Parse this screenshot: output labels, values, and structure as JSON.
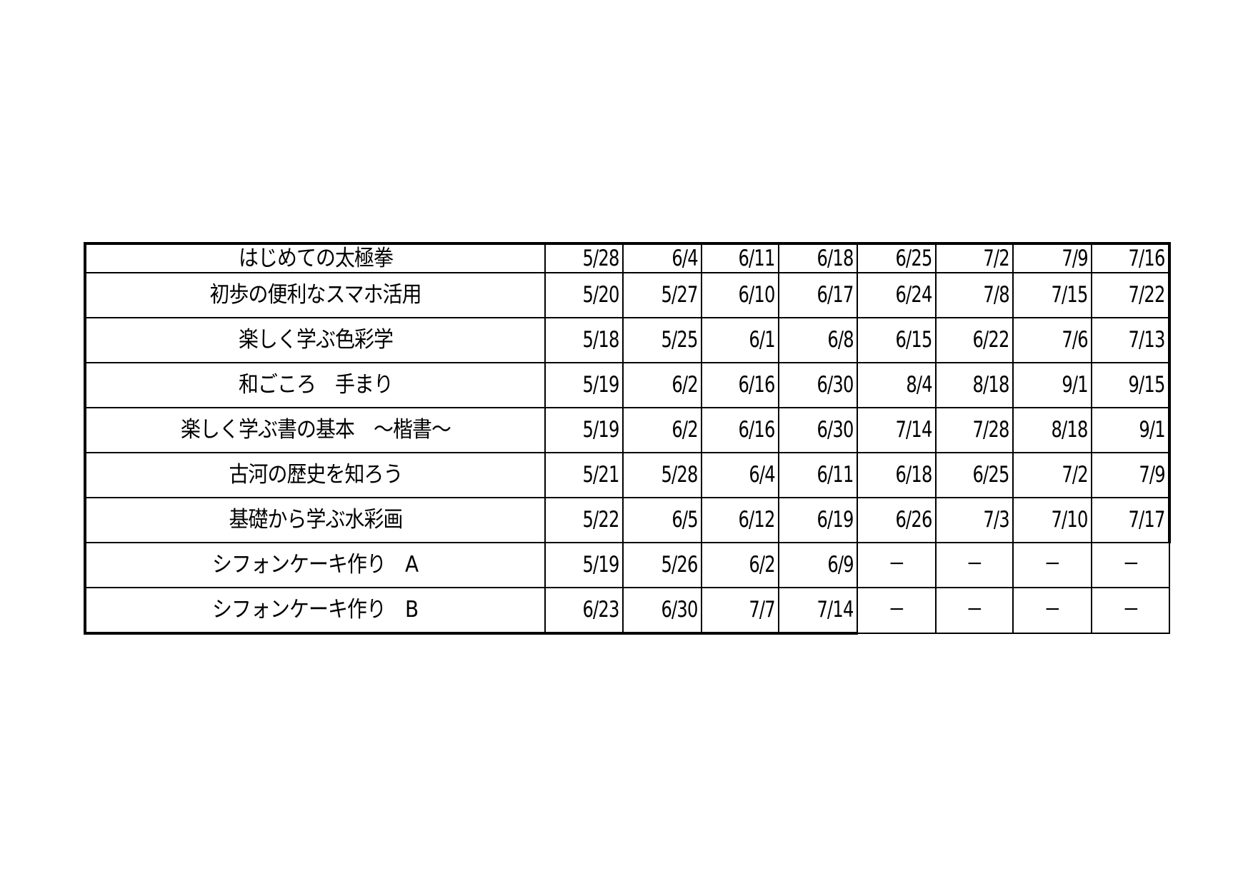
{
  "courses": [
    {
      "name": "はじめての太極拳",
      "dates": [
        "5/28",
        "6/4",
        "6/11",
        "6/18",
        "6/25",
        "7/2",
        "7/9",
        "7/16"
      ]
    },
    {
      "name": "初歩の便利なスマホ活用",
      "dates": [
        "5/20",
        "5/27",
        "6/10",
        "6/17",
        "6/24",
        "7/8",
        "7/15",
        "7/22"
      ]
    },
    {
      "name": "楽しく学ぶ色彩学",
      "dates": [
        "5/18",
        "5/25",
        "6/1",
        "6/8",
        "6/15",
        "6/22",
        "7/6",
        "7/13"
      ]
    },
    {
      "name": "和ごころ　手まり",
      "dates": [
        "5/19",
        "6/2",
        "6/16",
        "6/30",
        "8/4",
        "8/18",
        "9/1",
        "9/15"
      ]
    },
    {
      "name": "楽しく学ぶ書の基本　～楷書～",
      "dates": [
        "5/19",
        "6/2",
        "6/16",
        "6/30",
        "7/14",
        "7/28",
        "8/18",
        "9/1"
      ]
    },
    {
      "name": "古河の歴史を知ろう",
      "dates": [
        "5/21",
        "5/28",
        "6/4",
        "6/11",
        "6/18",
        "6/25",
        "7/2",
        "7/9"
      ]
    },
    {
      "name": "基礎から学ぶ水彩画",
      "dates": [
        "5/22",
        "6/5",
        "6/12",
        "6/19",
        "6/26",
        "7/3",
        "7/10",
        "7/17"
      ]
    },
    {
      "name": "シフォンケーキ作り　A",
      "dates": [
        "5/19",
        "5/26",
        "6/2",
        "6/9",
        "－",
        "－",
        "－",
        "－"
      ]
    },
    {
      "name": "シフォンケーキ作り　B",
      "dates": [
        "6/23",
        "6/30",
        "7/7",
        "7/14",
        "－",
        "－",
        "－",
        "－"
      ]
    }
  ]
}
